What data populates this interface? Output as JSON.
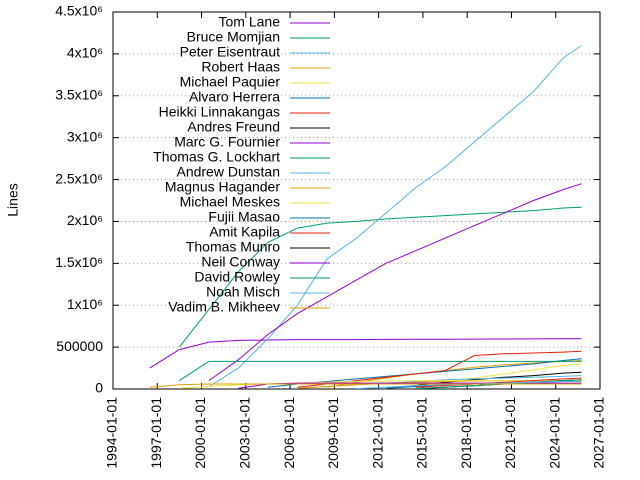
{
  "chart_data": {
    "type": "line",
    "y_label": "Lines",
    "x": [
      "1996-07-01",
      "1998-07-01",
      "2000-07-01",
      "2002-07-01",
      "2004-07-01",
      "2006-07-01",
      "2008-07-01",
      "2010-07-01",
      "2012-07-01",
      "2014-07-01",
      "2016-07-01",
      "2018-07-01",
      "2020-07-01",
      "2022-07-01",
      "2024-07-01",
      "2025-10-01"
    ],
    "xlim": [
      "1994-01-01",
      "2027-01-01"
    ],
    "xticks": [
      "1994-01-01",
      "1997-01-01",
      "2000-01-01",
      "2003-01-01",
      "2006-01-01",
      "2009-01-01",
      "2012-01-01",
      "2015-01-01",
      "2018-01-01",
      "2021-01-01",
      "2024-01-01",
      "2027-01-01"
    ],
    "ylim": [
      0,
      4500000
    ],
    "yticks": [
      0,
      500000,
      {
        "value": 1000000,
        "label": "1x10⁶"
      },
      {
        "value": 1500000,
        "label": "1.5x10⁶"
      },
      {
        "value": 2000000,
        "label": "2x10⁶"
      },
      {
        "value": 2500000,
        "label": "2.5x10⁶"
      },
      {
        "value": 3000000,
        "label": "3x10⁶"
      },
      {
        "value": 3500000,
        "label": "3.5x10⁶"
      },
      {
        "value": 4000000,
        "label": "4x10⁶"
      },
      {
        "value": 4500000,
        "label": "4.5x10⁶"
      }
    ],
    "grid": true,
    "legend": "top-left",
    "series": [
      {
        "name": "Tom Lane",
        "color": "#9400d3",
        "values": [
          250000,
          470000,
          560000,
          580000,
          585000,
          590000,
          590000,
          590000,
          592000,
          594000,
          595000,
          596000,
          597000,
          598000,
          600000,
          600000
        ]
      },
      {
        "name": "Bruce Momjian",
        "color": "#009e73",
        "values": [
          null,
          500000,
          950000,
          1400000,
          1750000,
          1920000,
          1980000,
          2000000,
          2030000,
          2050000,
          2070000,
          2090000,
          2110000,
          2130000,
          2160000,
          2170000
        ]
      },
      {
        "name": "Peter Eisentraut",
        "color": "#56b4e9",
        "values": [
          null,
          null,
          30000,
          250000,
          600000,
          1000000,
          1550000,
          1800000,
          2100000,
          2400000,
          2650000,
          2950000,
          3250000,
          3550000,
          3950000,
          4100000
        ]
      },
      {
        "name": "Robert Haas",
        "color": "#e69f00",
        "values": [
          null,
          null,
          null,
          null,
          null,
          null,
          20000,
          80000,
          130000,
          180000,
          220000,
          260000,
          290000,
          310000,
          330000,
          340000
        ]
      },
      {
        "name": "Michael Paquier",
        "color": "#f0e442",
        "values": [
          null,
          null,
          null,
          null,
          null,
          null,
          null,
          null,
          10000,
          40000,
          80000,
          130000,
          180000,
          230000,
          280000,
          300000
        ]
      },
      {
        "name": "Alvaro Herrera",
        "color": "#0072b2",
        "values": [
          null,
          null,
          null,
          null,
          20000,
          60000,
          90000,
          120000,
          150000,
          180000,
          210000,
          240000,
          270000,
          300000,
          340000,
          360000
        ]
      },
      {
        "name": "Heikki Linnakangas",
        "color": "#e51e10",
        "values": [
          null,
          null,
          null,
          null,
          null,
          20000,
          60000,
          100000,
          140000,
          180000,
          220000,
          400000,
          420000,
          430000,
          440000,
          450000
        ]
      },
      {
        "name": "Andres Freund",
        "color": "#000000",
        "values": [
          null,
          null,
          null,
          null,
          null,
          null,
          null,
          null,
          10000,
          40000,
          80000,
          110000,
          140000,
          160000,
          190000,
          200000
        ]
      },
      {
        "name": "Marc G. Fournier",
        "color": "#9400d3",
        "values": [
          null,
          null,
          100000,
          350000,
          650000,
          900000,
          1100000,
          1300000,
          1500000,
          1650000,
          1800000,
          1950000,
          2100000,
          2250000,
          2380000,
          2450000
        ]
      },
      {
        "name": "Thomas G. Lockhart",
        "color": "#009e73",
        "values": [
          null,
          100000,
          330000,
          330000,
          330000,
          330000,
          330000,
          330000,
          330000,
          330000,
          330000,
          330000,
          330000,
          330000,
          330000,
          330000
        ]
      },
      {
        "name": "Andrew Dunstan",
        "color": "#56b4e9",
        "values": [
          null,
          null,
          null,
          null,
          null,
          10000,
          30000,
          50000,
          70000,
          90000,
          110000,
          120000,
          130000,
          140000,
          150000,
          160000
        ]
      },
      {
        "name": "Magnus Hagander",
        "color": "#e69f00",
        "values": [
          null,
          null,
          null,
          null,
          null,
          10000,
          30000,
          50000,
          70000,
          80000,
          90000,
          95000,
          100000,
          100000,
          100000,
          100000
        ]
      },
      {
        "name": "Michael Meskes",
        "color": "#f0e442",
        "values": [
          null,
          10000,
          30000,
          50000,
          60000,
          70000,
          80000,
          90000,
          95000,
          100000,
          100000,
          100000,
          100000,
          100000,
          100000,
          100000
        ]
      },
      {
        "name": "Fujii Masao",
        "color": "#0072b2",
        "values": [
          null,
          null,
          null,
          null,
          null,
          null,
          null,
          null,
          10000,
          30000,
          50000,
          60000,
          70000,
          80000,
          90000,
          90000
        ]
      },
      {
        "name": "Amit Kapila",
        "color": "#e51e10",
        "values": [
          null,
          null,
          null,
          null,
          null,
          null,
          null,
          null,
          null,
          20000,
          40000,
          60000,
          80000,
          100000,
          120000,
          130000
        ]
      },
      {
        "name": "Thomas Munro",
        "color": "#000000",
        "values": [
          null,
          null,
          null,
          null,
          null,
          null,
          null,
          null,
          null,
          5000,
          20000,
          40000,
          60000,
          80000,
          100000,
          110000
        ]
      },
      {
        "name": "Neil Conway",
        "color": "#9400d3",
        "values": [
          null,
          null,
          null,
          10000,
          60000,
          70000,
          70000,
          70000,
          70000,
          70000,
          70000,
          70000,
          70000,
          70000,
          70000,
          70000
        ]
      },
      {
        "name": "David Rowley",
        "color": "#009e73",
        "values": [
          null,
          null,
          null,
          null,
          null,
          null,
          null,
          null,
          null,
          5000,
          20000,
          40000,
          60000,
          80000,
          100000,
          110000
        ]
      },
      {
        "name": "Noah Misch",
        "color": "#56b4e9",
        "values": [
          null,
          null,
          null,
          null,
          null,
          null,
          null,
          5000,
          20000,
          40000,
          50000,
          60000,
          70000,
          80000,
          90000,
          90000
        ]
      },
      {
        "name": "Vadim B. Mikheev",
        "color": "#e69f00",
        "values": [
          20000,
          50000,
          60000,
          60000,
          60000,
          60000,
          60000,
          60000,
          60000,
          60000,
          60000,
          60000,
          60000,
          60000,
          60000,
          60000
        ]
      }
    ]
  }
}
